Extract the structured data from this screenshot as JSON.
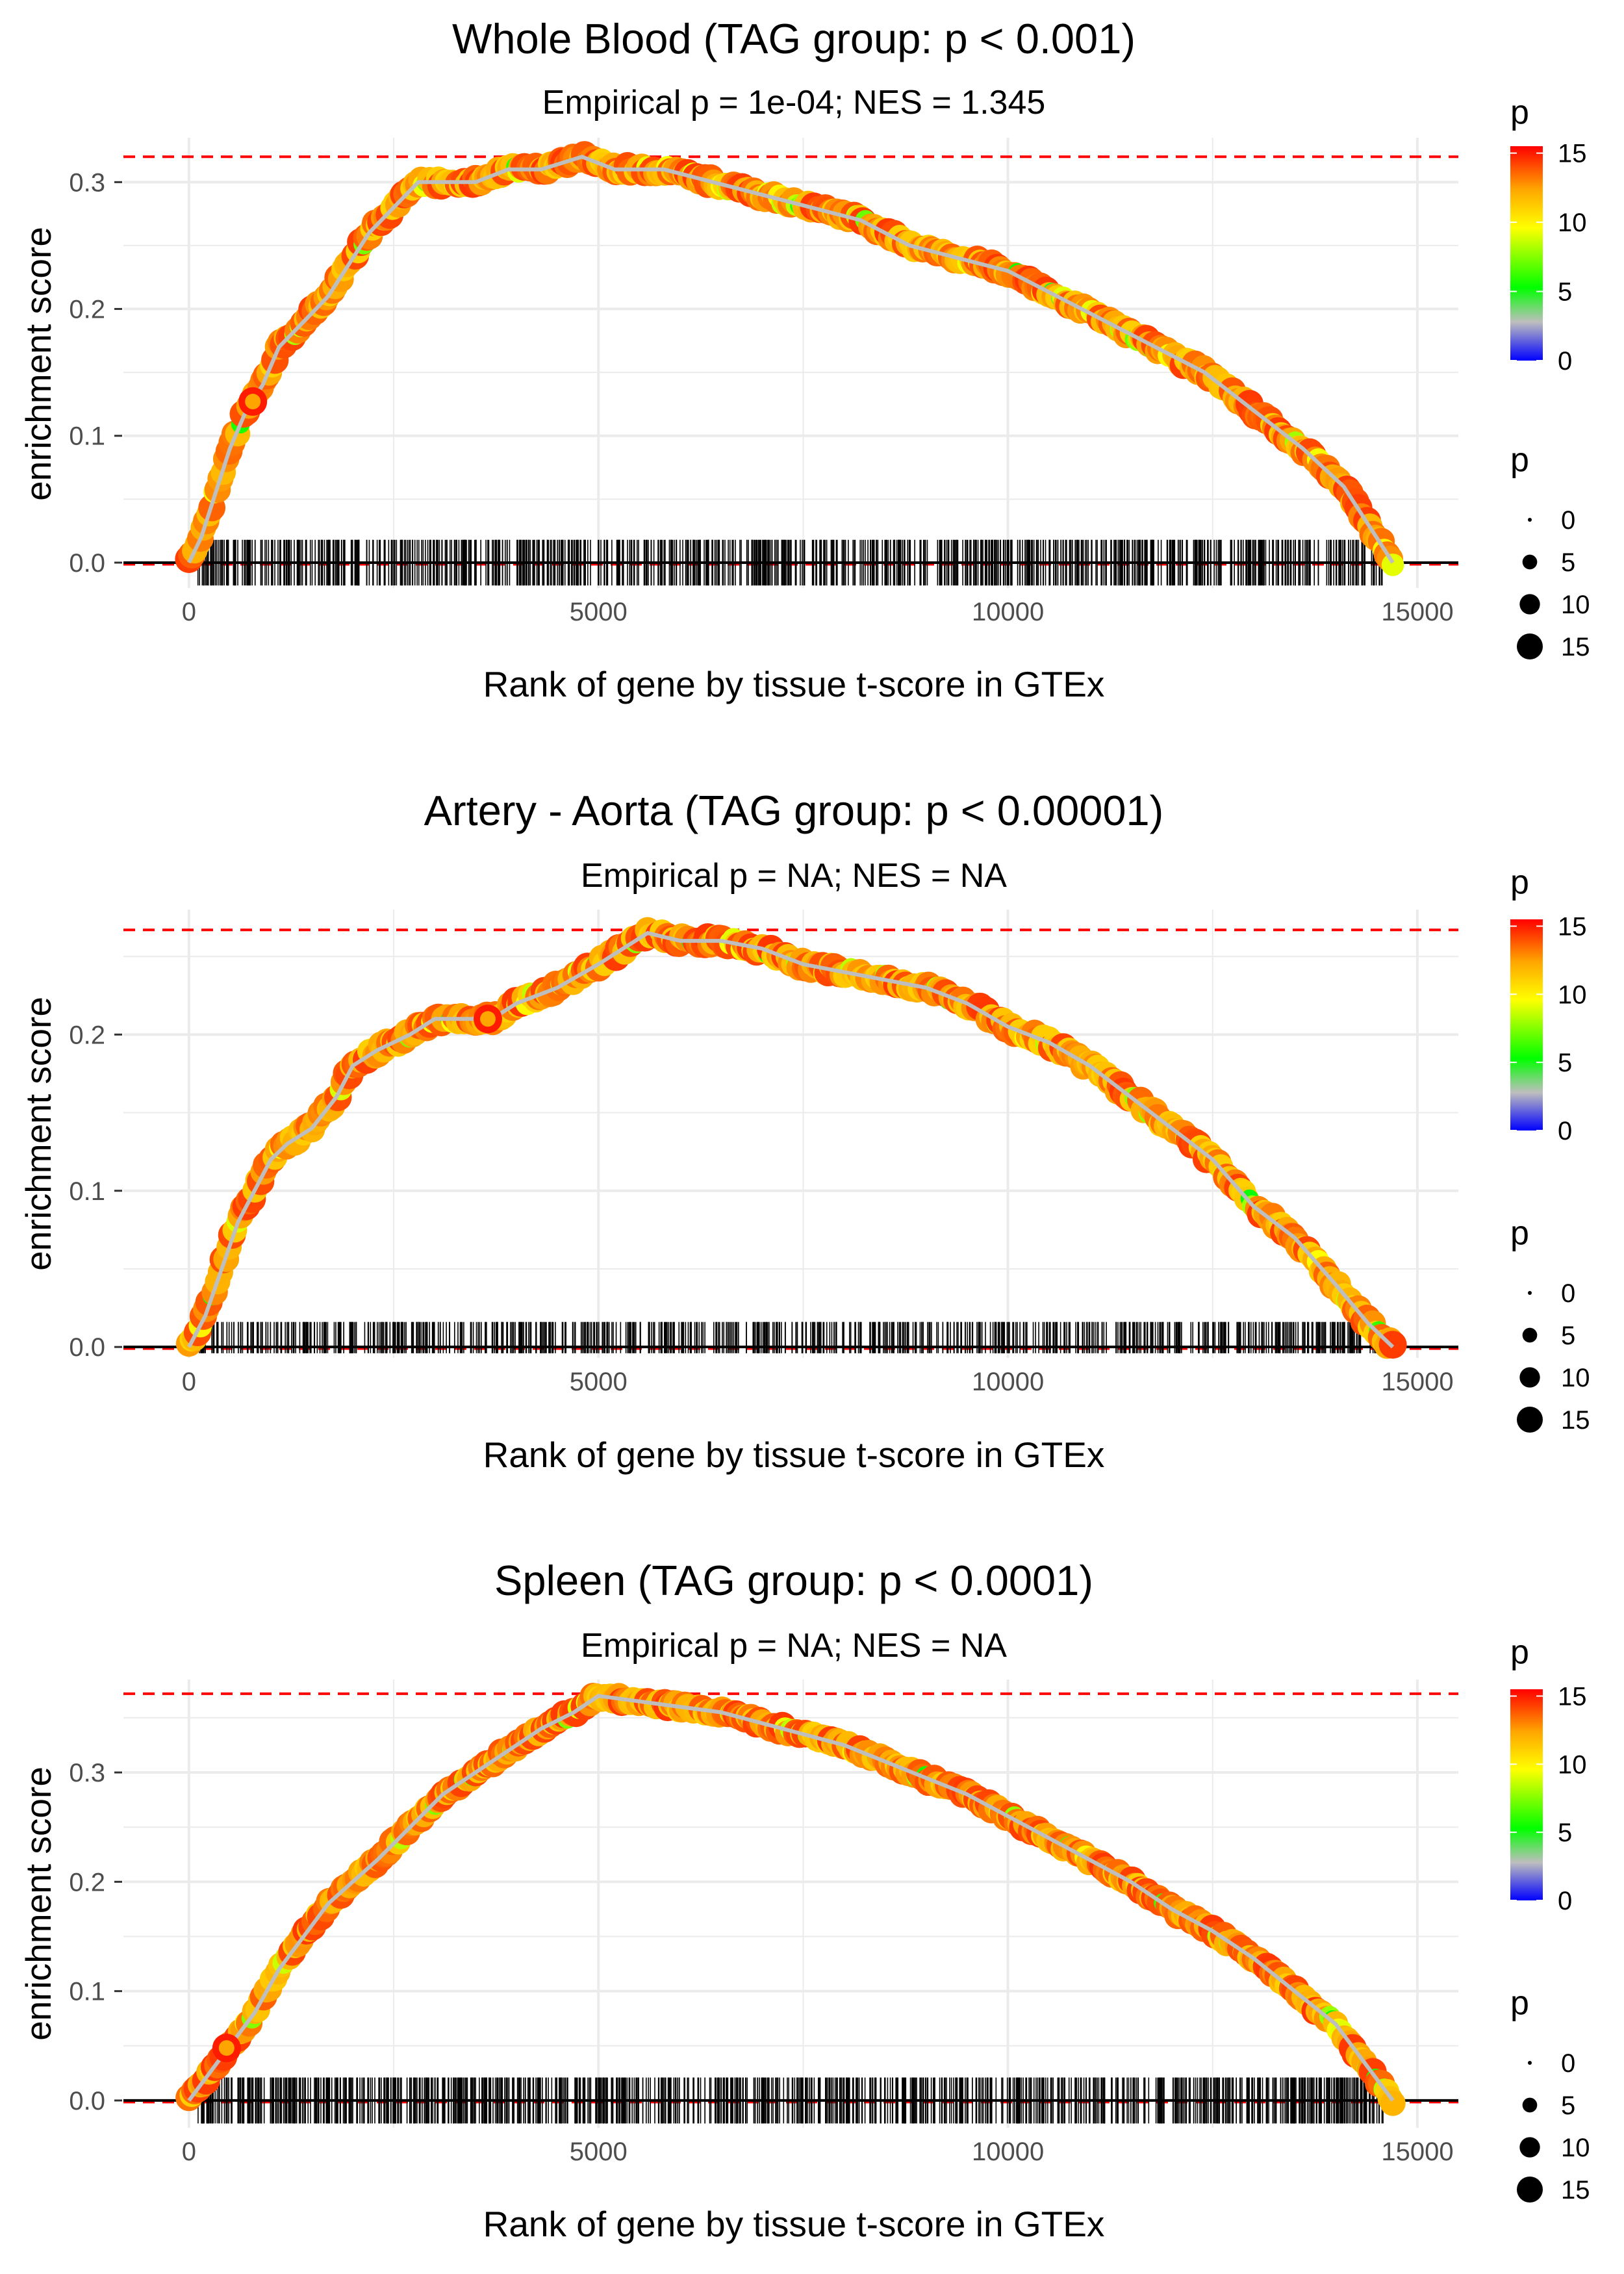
{
  "colors": {
    "grid": "#ebebeb",
    "max_line": "#ff0000",
    "zero_line": "#000000",
    "curve": "#bebebe",
    "ticks": "#000000",
    "colorbar": [
      "#0000ff",
      "#bebebe",
      "#00ff00",
      "#ffff00",
      "#ffa500",
      "#ff0000"
    ]
  },
  "chart_data": [
    {
      "type": "line",
      "title": "Whole Blood (TAG group: p < 0.001)",
      "subtitle": "Empirical p = 1e-04; NES = 1.345",
      "xlabel": "Rank of gene by tissue t-score in GTEx",
      "ylabel": "enrichment score",
      "xlim": [
        -800,
        15500
      ],
      "ylim": [
        -0.02,
        0.335
      ],
      "xticks": [
        0,
        5000,
        10000,
        15000
      ],
      "xtick_labels": [
        "0",
        "5000",
        "10000",
        "15000"
      ],
      "yticks": [
        0.0,
        0.1,
        0.2,
        0.3
      ],
      "ytick_labels": [
        "0.0",
        "0.1",
        "0.2",
        "0.3"
      ],
      "max_es": 0.32,
      "n_genes": 14700,
      "x": [
        0,
        150,
        300,
        500,
        700,
        900,
        1100,
        1400,
        1700,
        2000,
        2200,
        2500,
        2800,
        3200,
        3500,
        3900,
        4300,
        4800,
        5200,
        5800,
        6400,
        7000,
        7600,
        8200,
        8800,
        9400,
        10000,
        10600,
        11200,
        11800,
        12400,
        13000,
        13600,
        14100,
        14500,
        14700
      ],
      "y": [
        0.0,
        0.02,
        0.05,
        0.09,
        0.12,
        0.14,
        0.17,
        0.19,
        0.21,
        0.24,
        0.26,
        0.28,
        0.3,
        0.3,
        0.3,
        0.31,
        0.31,
        0.32,
        0.31,
        0.31,
        0.3,
        0.29,
        0.28,
        0.27,
        0.25,
        0.24,
        0.23,
        0.21,
        0.19,
        0.17,
        0.15,
        0.12,
        0.09,
        0.06,
        0.02,
        0.0
      ],
      "highlight_points": [
        {
          "x": 780,
          "y": 0.127,
          "p": 15
        }
      ],
      "tag_gene_ranks": {
        "start": 100,
        "end": 14600,
        "count": 900,
        "height": 0.018,
        "depth": -0.018
      },
      "legend_color": {
        "title": "p",
        "labels": [
          "15",
          "10",
          "5",
          "0"
        ],
        "values": [
          15,
          10,
          5,
          0
        ],
        "range": [
          0,
          15.5
        ]
      },
      "legend_size": {
        "title": "p",
        "labels": [
          "0",
          "5",
          "10",
          "15"
        ],
        "values": [
          0,
          5,
          10,
          15
        ]
      }
    },
    {
      "type": "line",
      "title": "Artery - Aorta (TAG group: p < 0.00001)",
      "subtitle": "Empirical p = NA; NES = NA",
      "xlabel": "Rank of gene by tissue t-score in GTEx",
      "ylabel": "enrichment score",
      "xlim": [
        -800,
        15500
      ],
      "ylim": [
        -0.007,
        0.28
      ],
      "xticks": [
        0,
        5000,
        10000,
        15000
      ],
      "xtick_labels": [
        "0",
        "5000",
        "10000",
        "15000"
      ],
      "yticks": [
        0.0,
        0.1,
        0.2
      ],
      "ytick_labels": [
        "0.0",
        "0.1",
        "0.2"
      ],
      "max_es": 0.267,
      "n_genes": 14700,
      "x": [
        0,
        200,
        400,
        600,
        800,
        1000,
        1200,
        1500,
        1800,
        2000,
        2300,
        2700,
        3000,
        3400,
        3700,
        4000,
        4500,
        5000,
        5300,
        5600,
        6000,
        6500,
        7000,
        7500,
        8000,
        8500,
        9000,
        9500,
        10000,
        10500,
        11000,
        11500,
        12000,
        12500,
        13000,
        13500,
        14000,
        14400,
        14700
      ],
      "y": [
        0.0,
        0.02,
        0.05,
        0.08,
        0.1,
        0.12,
        0.13,
        0.14,
        0.16,
        0.18,
        0.19,
        0.2,
        0.21,
        0.21,
        0.21,
        0.22,
        0.23,
        0.245,
        0.255,
        0.265,
        0.26,
        0.26,
        0.255,
        0.245,
        0.24,
        0.235,
        0.23,
        0.22,
        0.205,
        0.195,
        0.18,
        0.16,
        0.14,
        0.12,
        0.09,
        0.07,
        0.04,
        0.015,
        0.0
      ],
      "highlight_points": [
        {
          "x": 3650,
          "y": 0.21,
          "p": 15
        }
      ],
      "tag_gene_ranks": {
        "start": 100,
        "end": 14600,
        "count": 800,
        "height": 0.016,
        "depth": -0.004
      },
      "legend_color": {
        "title": "p",
        "labels": [
          "15",
          "10",
          "5",
          "0"
        ],
        "values": [
          15,
          10,
          5,
          0
        ],
        "range": [
          0,
          15.5
        ]
      },
      "legend_size": {
        "title": "p",
        "labels": [
          "0",
          "5",
          "10",
          "15"
        ],
        "values": [
          0,
          5,
          10,
          15
        ]
      }
    },
    {
      "type": "line",
      "title": "Spleen (TAG group: p < 0.0001)",
      "subtitle": "Empirical p = NA; NES = NA",
      "xlabel": "Rank of gene by tissue t-score in GTEx",
      "ylabel": "enrichment score",
      "xlim": [
        -800,
        15500
      ],
      "ylim": [
        -0.025,
        0.385
      ],
      "xticks": [
        0,
        5000,
        10000,
        15000
      ],
      "xtick_labels": [
        "0",
        "5000",
        "10000",
        "15000"
      ],
      "yticks": [
        0.0,
        0.1,
        0.2,
        0.3
      ],
      "ytick_labels": [
        "0.0",
        "0.1",
        "0.2",
        "0.3"
      ],
      "max_es": 0.372,
      "n_genes": 14700,
      "x": [
        0,
        200,
        400,
        500,
        800,
        1100,
        1400,
        1700,
        2000,
        2300,
        2700,
        3100,
        3500,
        3900,
        4300,
        4700,
        5000,
        5500,
        6000,
        6500,
        7000,
        7500,
        8000,
        8500,
        9000,
        9500,
        10000,
        10500,
        11000,
        11500,
        12000,
        12500,
        13000,
        13500,
        14000,
        14400,
        14700
      ],
      "y": [
        0.0,
        0.02,
        0.04,
        0.05,
        0.08,
        0.12,
        0.15,
        0.18,
        0.2,
        0.22,
        0.25,
        0.28,
        0.3,
        0.32,
        0.34,
        0.355,
        0.37,
        0.365,
        0.36,
        0.355,
        0.345,
        0.335,
        0.325,
        0.31,
        0.295,
        0.28,
        0.26,
        0.24,
        0.22,
        0.2,
        0.175,
        0.155,
        0.13,
        0.1,
        0.07,
        0.03,
        0.0
      ],
      "highlight_points": [
        {
          "x": 460,
          "y": 0.048,
          "p": 15
        }
      ],
      "tag_gene_ranks": {
        "start": 100,
        "end": 14600,
        "count": 1000,
        "height": 0.021,
        "depth": -0.021
      },
      "legend_color": {
        "title": "p",
        "labels": [
          "15",
          "10",
          "5",
          "0"
        ],
        "values": [
          15,
          10,
          5,
          0
        ],
        "range": [
          0,
          15.5
        ]
      },
      "legend_size": {
        "title": "p",
        "labels": [
          "0",
          "5",
          "10",
          "15"
        ],
        "values": [
          0,
          5,
          10,
          15
        ]
      }
    }
  ]
}
